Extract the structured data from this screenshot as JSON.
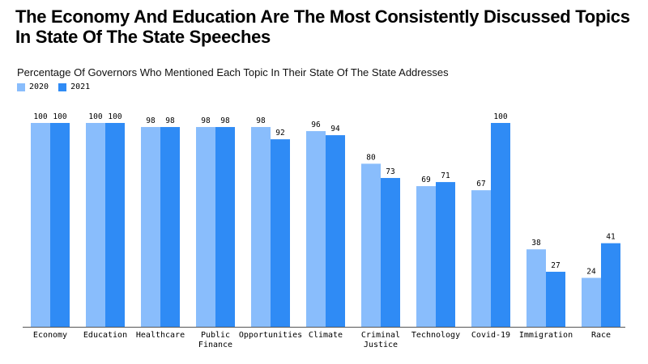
{
  "title": "The Economy And Education Are The Most Consistently Discussed Topics In State Of The State Speeches",
  "chart_data": {
    "type": "bar",
    "title": "The Economy And Education Are The Most Consistently Discussed Topics In State Of The State Speeches",
    "subtitle": "Percentage Of Governors Who Mentioned Each Topic In Their State Of The State Addresses",
    "categories": [
      "Economy",
      "Education",
      "Healthcare",
      "Public Finance",
      "Opportunities",
      "Climate",
      "Criminal Justice",
      "Technology",
      "Covid-19",
      "Immigration",
      "Race"
    ],
    "series": [
      {
        "name": "2020",
        "color": "#89bdfc",
        "values": [
          100,
          100,
          98,
          98,
          98,
          96,
          80,
          69,
          67,
          38,
          24
        ]
      },
      {
        "name": "2021",
        "color": "#2f8bf5",
        "values": [
          100,
          100,
          98,
          98,
          92,
          94,
          73,
          71,
          100,
          27,
          41
        ]
      }
    ],
    "ylim": [
      0,
      100
    ],
    "grid": false,
    "legend": "top-left",
    "xlabel": "",
    "ylabel": ""
  }
}
